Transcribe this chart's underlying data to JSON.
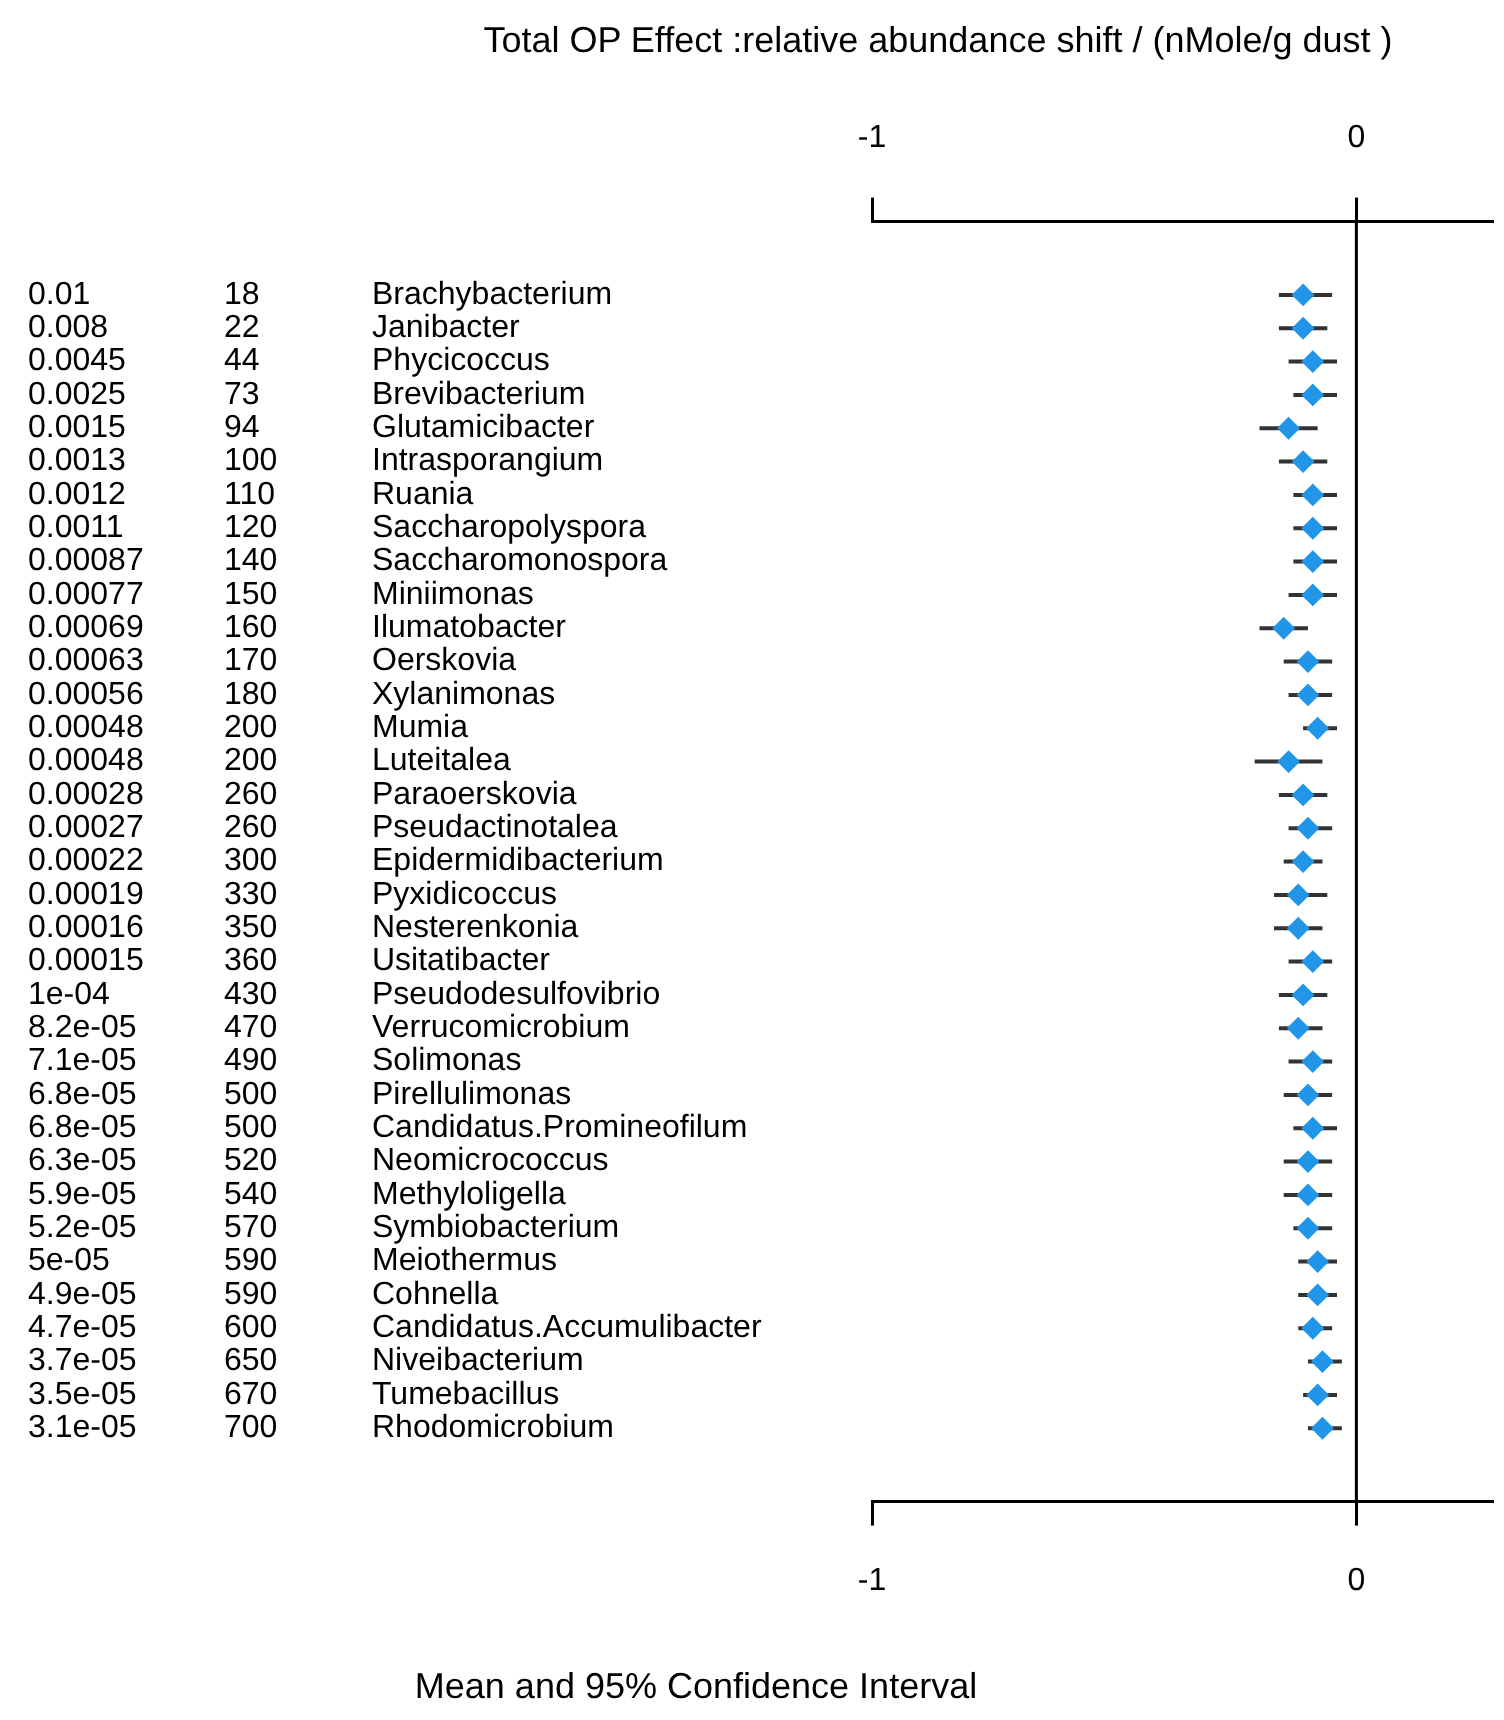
{
  "chart_data": {
    "type": "scatter",
    "orientation": "horizontal",
    "title": "Total OP Effect :relative abundance shift / (nMole/g dust )",
    "xlabel": "Mean and 95% Confidence Interval",
    "categories": [
      "Brachybacterium",
      "Janibacter",
      "Phycicoccus",
      "Brevibacterium",
      "Glutamicibacter",
      "Intrasporangium",
      "Ruania",
      "Saccharopolyspora",
      "Saccharomonospora",
      "Miniimonas",
      "Ilumatobacter",
      "Oerskovia",
      "Xylanimonas",
      "Mumia",
      "Luteitalea",
      "Paraoerskovia",
      "Pseudactinotalea",
      "Epidermidibacterium",
      "Pyxidicoccus",
      "Nesterenkonia",
      "Usitatibacter",
      "Pseudodesulfovibrio",
      "Verrucomicrobium",
      "Solimonas",
      "Pirellulimonas",
      "Candidatus.Promineofilum",
      "Neomicrococcus",
      "Methyloligella",
      "Symbiobacterium",
      "Meiothermus",
      "Cohnella",
      "Candidatus.Accumulibacter",
      "Niveibacterium",
      "Tumebacillus",
      "Rhodomicrobium"
    ],
    "series": [
      {
        "color": "#2196e8",
        "values": [
          -0.11,
          -0.11,
          -0.09,
          -0.09,
          -0.14,
          -0.11,
          -0.09,
          -0.09,
          -0.09,
          -0.09,
          -0.15,
          -0.1,
          -0.1,
          -0.08,
          -0.14,
          -0.11,
          -0.1,
          -0.11,
          -0.12,
          -0.12,
          -0.09,
          -0.11,
          -0.12,
          -0.09,
          -0.1,
          -0.09,
          -0.1,
          -0.1,
          -0.1,
          -0.08,
          -0.08,
          -0.09,
          -0.07,
          -0.08,
          -0.07
        ],
        "errors": [
          [
            -0.16,
            -0.05
          ],
          [
            -0.16,
            -0.06
          ],
          [
            -0.14,
            -0.04
          ],
          [
            -0.13,
            -0.04
          ],
          [
            -0.2,
            -0.08
          ],
          [
            -0.16,
            -0.06
          ],
          [
            -0.13,
            -0.04
          ],
          [
            -0.13,
            -0.04
          ],
          [
            -0.13,
            -0.04
          ],
          [
            -0.14,
            -0.04
          ],
          [
            -0.2,
            -0.1
          ],
          [
            -0.15,
            -0.05
          ],
          [
            -0.14,
            -0.05
          ],
          [
            -0.11,
            -0.04
          ],
          [
            -0.21,
            -0.07
          ],
          [
            -0.16,
            -0.06
          ],
          [
            -0.14,
            -0.05
          ],
          [
            -0.15,
            -0.07
          ],
          [
            -0.17,
            -0.06
          ],
          [
            -0.17,
            -0.07
          ],
          [
            -0.14,
            -0.05
          ],
          [
            -0.16,
            -0.06
          ],
          [
            -0.16,
            -0.07
          ],
          [
            -0.14,
            -0.05
          ],
          [
            -0.15,
            -0.05
          ],
          [
            -0.13,
            -0.04
          ],
          [
            -0.15,
            -0.05
          ],
          [
            -0.15,
            -0.05
          ],
          [
            -0.13,
            -0.05
          ],
          [
            -0.12,
            -0.04
          ],
          [
            -0.12,
            -0.04
          ],
          [
            -0.12,
            -0.05
          ],
          [
            -0.1,
            -0.03
          ],
          [
            -0.11,
            -0.04
          ],
          [
            -0.1,
            -0.03
          ]
        ]
      }
    ],
    "xlim": [
      -1,
      0.28
    ],
    "xticks": [
      -1,
      0
    ],
    "x2lim": [
      -1,
      0.28
    ],
    "x2ticks": [
      -1,
      0
    ],
    "ref_lines": [
      {
        "axis": "x",
        "value": 0,
        "color": "#000000"
      }
    ],
    "marker": "diamond",
    "grid": false,
    "legend": false,
    "annotations": [
      "0.01",
      "18",
      "0.008",
      "22",
      "0.0045",
      "44",
      "0.0025",
      "73",
      "0.0015",
      "94",
      "0.0013",
      "100",
      "0.0012",
      "110",
      "0.0011",
      "120",
      "0.00087",
      "140",
      "0.00077",
      "150",
      "0.00069",
      "160",
      "0.00063",
      "170",
      "0.00056",
      "180",
      "0.00048",
      "200",
      "0.00048",
      "200",
      "0.00028",
      "260",
      "0.00027",
      "260",
      "0.00022",
      "300",
      "0.00019",
      "330",
      "0.00016",
      "350",
      "0.00015",
      "360",
      "1e-04",
      "430",
      "8.2e-05",
      "470",
      "7.1e-05",
      "490",
      "6.8e-05",
      "500",
      "6.8e-05",
      "500",
      "6.3e-05",
      "520",
      "5.9e-05",
      "540",
      "5.2e-05",
      "570",
      "5e-05",
      "590",
      "4.9e-05",
      "590",
      "4.7e-05",
      "600",
      "3.7e-05",
      "650",
      "3.5e-05",
      "670",
      "3.1e-05",
      "700"
    ]
  }
}
